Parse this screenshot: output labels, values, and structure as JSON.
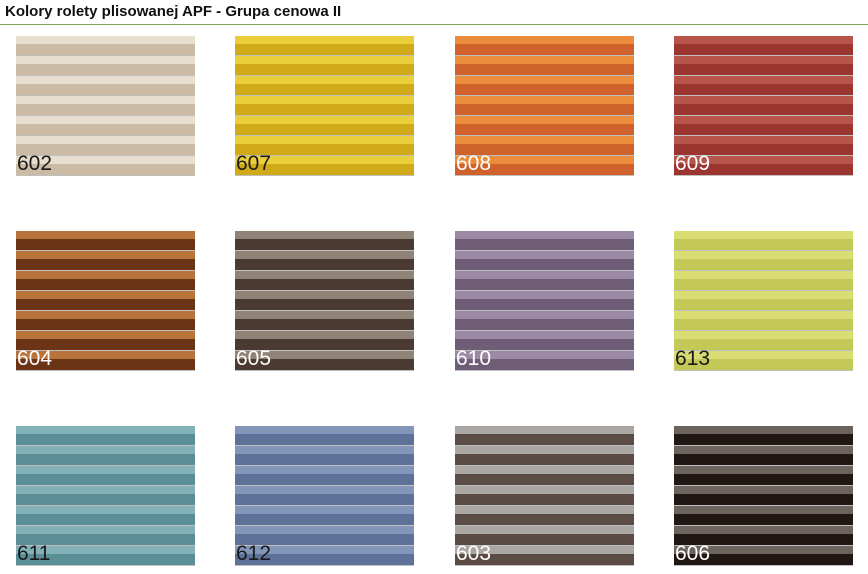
{
  "title": "Kolory rolety plisowanej APF - Grupa cenowa II",
  "swatches": [
    {
      "code": "602",
      "light": "#e8dece",
      "dark": "#cbbba5",
      "text": "#1a1a1a"
    },
    {
      "code": "607",
      "light": "#eace3c",
      "dark": "#d0aa18",
      "text": "#1a1a1a"
    },
    {
      "code": "608",
      "light": "#eb8c3c",
      "dark": "#cf612a",
      "text": "#ffffff"
    },
    {
      "code": "609",
      "light": "#b7554b",
      "dark": "#9a352f",
      "text": "#ffffff"
    },
    {
      "code": "604",
      "light": "#b8743a",
      "dark": "#6c3416",
      "text": "#ffffff"
    },
    {
      "code": "605",
      "light": "#8f8276",
      "dark": "#4a3a32",
      "text": "#ffffff"
    },
    {
      "code": "610",
      "light": "#9c89a6",
      "dark": "#6f5d77",
      "text": "#ffffff"
    },
    {
      "code": "613",
      "light": "#dadd74",
      "dark": "#c4c856",
      "text": "#1a1a1a"
    },
    {
      "code": "611",
      "light": "#82b2b7",
      "dark": "#5a8f97",
      "text": "#1a1a1a"
    },
    {
      "code": "612",
      "light": "#8396ba",
      "dark": "#5e7299",
      "text": "#1a1a1a"
    },
    {
      "code": "603",
      "light": "#aaa6a3",
      "dark": "#5a4c45",
      "text": "#ffffff"
    },
    {
      "code": "606",
      "light": "#6c635d",
      "dark": "#201714",
      "text": "#ffffff"
    }
  ]
}
